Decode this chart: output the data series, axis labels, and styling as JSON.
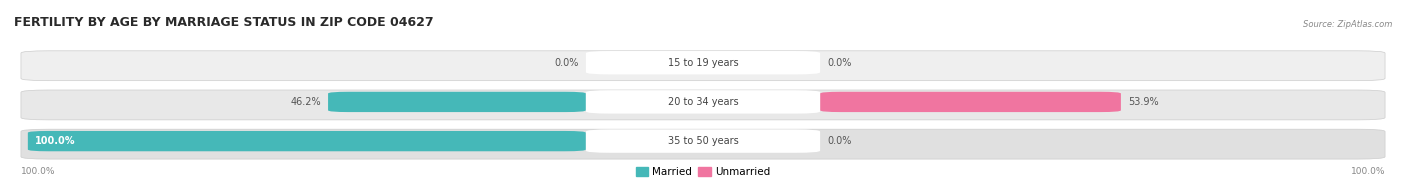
{
  "title": "FERTILITY BY AGE BY MARRIAGE STATUS IN ZIP CODE 04627",
  "source": "Source: ZipAtlas.com",
  "rows": [
    {
      "label": "15 to 19 years",
      "married_pct": 0.0,
      "unmarried_pct": 0.0,
      "married_left_label": "0.0%",
      "unmarried_right_label": "0.0%"
    },
    {
      "label": "20 to 34 years",
      "married_pct": 46.2,
      "unmarried_pct": 53.9,
      "married_left_label": "46.2%",
      "unmarried_right_label": "53.9%"
    },
    {
      "label": "35 to 50 years",
      "married_pct": 100.0,
      "unmarried_pct": 0.0,
      "married_left_label": "100.0%",
      "unmarried_right_label": "0.0%"
    }
  ],
  "married_color": "#45b8b8",
  "unmarried_color": "#f075a0",
  "row_bg_colors": [
    "#efefef",
    "#e8e8e8",
    "#e0e0e0"
  ],
  "label_pill_color": "#ffffff",
  "label_color": "#444444",
  "title_color": "#2a2a2a",
  "source_color": "#888888",
  "axis_label_color": "#888888",
  "x_axis_left_label": "100.0%",
  "x_axis_right_label": "100.0%",
  "legend_married": "Married",
  "legend_unmarried": "Unmarried",
  "max_pct": 100.0,
  "bg_color": "#ffffff"
}
